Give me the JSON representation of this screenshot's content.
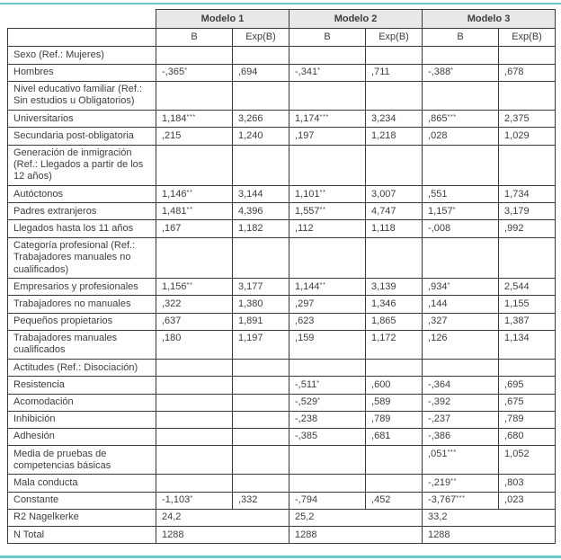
{
  "colors": {
    "accent": "#68c8cb",
    "header_bg": "#e8e8e8",
    "border": "#3a3a3a",
    "text": "#3d3d3d",
    "background": "#ffffff"
  },
  "table": {
    "models": [
      "Modelo 1",
      "Modelo 2",
      "Modelo 3"
    ],
    "sub_headers": [
      "B",
      "Exp(B)"
    ],
    "rows": [
      {
        "label": "Sexo (Ref.: Mujeres)",
        "cells": [
          "",
          "",
          "",
          "",
          "",
          ""
        ]
      },
      {
        "label": "Hombres",
        "cells": [
          "-,365*",
          ",694",
          "-,341*",
          ",711",
          "-,388*",
          ",678"
        ]
      },
      {
        "label": "Nivel educativo familiar (Ref.: Sin estudios u Obligatorios)",
        "cells": [
          "",
          "",
          "",
          "",
          "",
          ""
        ]
      },
      {
        "label": "Universitarios",
        "cells": [
          "1,184***",
          "3,266",
          "1,174***",
          "3,234",
          ",865***",
          "2,375"
        ]
      },
      {
        "label": "Secundaria post-obligatoria",
        "cells": [
          ",215",
          "1,240",
          ",197",
          "1,218",
          ",028",
          "1,029"
        ]
      },
      {
        "label": "Generación de inmigración (Ref.: Llegados a partir de los 12 años)",
        "cells": [
          "",
          "",
          "",
          "",
          "",
          ""
        ]
      },
      {
        "label": "Autóctonos",
        "cells": [
          "1,146**",
          "3,144",
          "1,101**",
          "3,007",
          ",551",
          "1,734"
        ]
      },
      {
        "label": "Padres extranjeros",
        "cells": [
          "1,481**",
          "4,396",
          "1,557**",
          "4,747",
          "1,157*",
          "3,179"
        ]
      },
      {
        "label": "Llegados hasta los 11 años",
        "cells": [
          ",167",
          "1,182",
          ",112",
          "1,118",
          "-,008",
          ",992"
        ]
      },
      {
        "label": "Categoría profesional (Ref.: Trabajadores manuales no cualificados)",
        "cells": [
          "",
          "",
          "",
          "",
          "",
          ""
        ]
      },
      {
        "label": "Empresarios y profesionales",
        "cells": [
          "1,156**",
          "3,177",
          "1,144**",
          "3,139",
          ",934*",
          "2,544"
        ]
      },
      {
        "label": "Trabajadores no manuales",
        "cells": [
          ",322",
          "1,380",
          ",297",
          "1,346",
          ",144",
          "1,155"
        ]
      },
      {
        "label": "Pequeños propietarios",
        "cells": [
          ",637",
          "1,891",
          ",623",
          "1,865",
          ",327",
          "1,387"
        ]
      },
      {
        "label": "Trabajadores manuales cualificados",
        "cells": [
          ",180",
          "1,197",
          ",159",
          "1,172",
          ",126",
          "1,134"
        ]
      },
      {
        "label": "Actitudes (Ref.: Disociación)",
        "cells": [
          "",
          "",
          "",
          "",
          "",
          ""
        ]
      },
      {
        "label": "Resistencia",
        "cells": [
          "",
          "",
          "-,511*",
          ",600",
          "-,364",
          ",695"
        ]
      },
      {
        "label": "Acomodación",
        "cells": [
          "",
          "",
          "-,529*",
          ",589",
          "-,392",
          ",675"
        ]
      },
      {
        "label": "Inhibición",
        "cells": [
          "",
          "",
          "-,238",
          ",789",
          "-,237",
          ",789"
        ]
      },
      {
        "label": "Adhesión",
        "cells": [
          "",
          "",
          "-,385",
          ",681",
          "-,386",
          ",680"
        ]
      },
      {
        "label": "Media de pruebas de competencias básicas",
        "cells": [
          "",
          "",
          "",
          "",
          ",051***",
          "1,052"
        ]
      },
      {
        "label": "Mala conducta",
        "cells": [
          "",
          "",
          "",
          "",
          "-,219**",
          ",803"
        ]
      },
      {
        "label": "Constante",
        "cells": [
          "-1,103*",
          ",332",
          "-,794",
          ",452",
          "-3,767***",
          ",023"
        ]
      }
    ],
    "summary_rows": [
      {
        "label": "R2 Nagelkerke",
        "values": [
          "24,2",
          "25,2",
          "33,2"
        ]
      },
      {
        "label": "N Total",
        "values": [
          "1288",
          "1288",
          "1288"
        ]
      }
    ]
  }
}
